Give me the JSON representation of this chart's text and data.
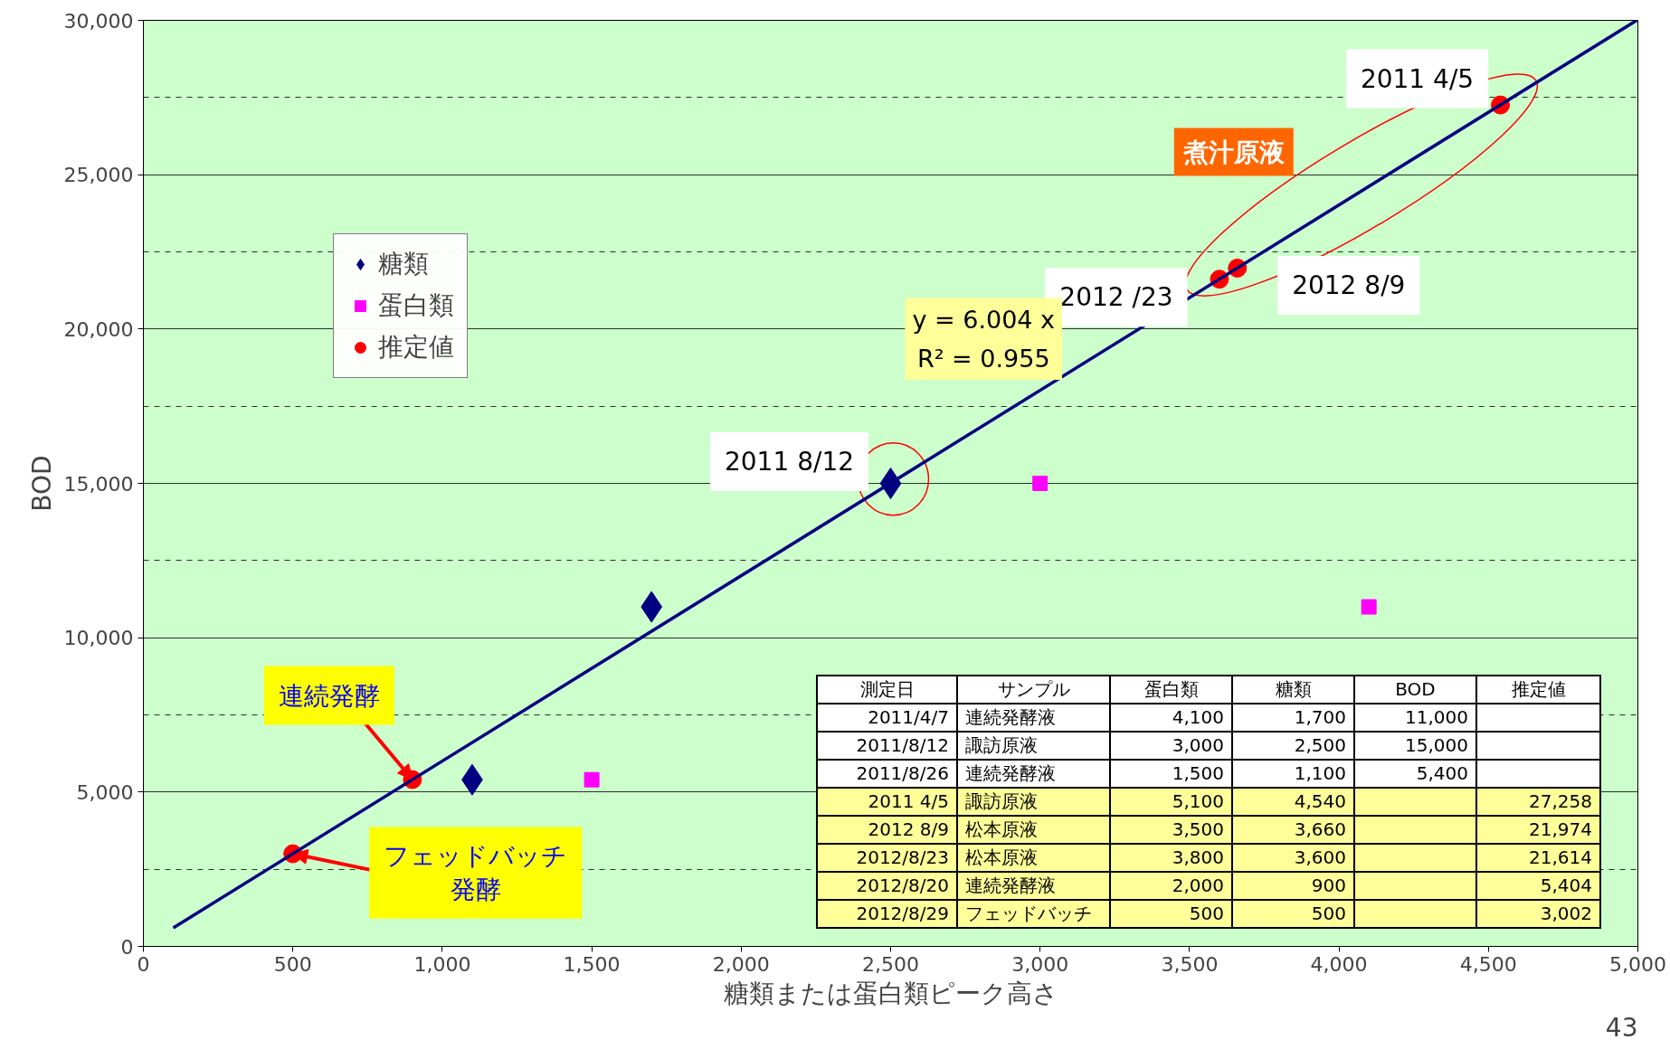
{
  "chart_data": {
    "type": "scatter",
    "xlabel": "糖類または蛋白類ピーク高さ",
    "ylabel": "BOD",
    "xlim": [
      0,
      5000
    ],
    "ylim": [
      0,
      30000
    ],
    "xticks": [
      0,
      500,
      {
        "value": 1000,
        "label": "1,000"
      },
      {
        "value": 1500,
        "label": "1,500"
      },
      {
        "value": 2000,
        "label": "2,000"
      },
      {
        "value": 2500,
        "label": "2,500"
      },
      {
        "value": 3000,
        "label": "3,000"
      },
      {
        "value": 3500,
        "label": "3,500"
      },
      {
        "value": 4000,
        "label": "4,000"
      },
      {
        "value": 4500,
        "label": "4,500"
      },
      {
        "value": 5000,
        "label": "5,000"
      }
    ],
    "yticks": [
      0,
      {
        "value": 5000,
        "label": "5,000"
      },
      {
        "value": 10000,
        "label": "10,000"
      },
      {
        "value": 15000,
        "label": "15,000"
      },
      {
        "value": 20000,
        "label": "20,000"
      },
      {
        "value": 25000,
        "label": "25,000"
      },
      {
        "value": 30000,
        "label": "30,000"
      }
    ],
    "grid": "y",
    "legend": "top left",
    "series": [
      {
        "name": "糖類",
        "color": "#000080",
        "marker": "diamond",
        "x": [
          1700,
          2500,
          1100
        ],
        "values": [
          11000,
          15000,
          5400
        ]
      },
      {
        "name": "蛋白類",
        "color": "#ff00ff",
        "marker": "square",
        "x": [
          4100,
          3000,
          1500
        ],
        "values": [
          11000,
          15000,
          5400
        ]
      },
      {
        "name": "推定値",
        "color": "#ff0000",
        "marker": "circle",
        "x": [
          4540,
          3660,
          3600,
          900,
          500
        ],
        "values": [
          27258,
          21974,
          21614,
          5404,
          3002
        ]
      },
      {
        "type": "line",
        "color": "#000080",
        "x": [
          100,
          4996
        ],
        "values": [
          600,
          30000
        ]
      }
    ],
    "annotations": [
      {
        "text": "2011 4/5",
        "x": 4540,
        "y": 27258
      },
      {
        "text": "2012 8/9",
        "x": 3660,
        "y": 21974
      },
      {
        "text": "2012 /23",
        "x": 3600,
        "y": 21614
      },
      {
        "text": "2011 8/12",
        "x": 2500,
        "y": 15000
      },
      {
        "text": "連続発酵",
        "x": 900,
        "y": 5404
      },
      {
        "text": "フェッドバッチ発酵",
        "x": 500,
        "y": 3002
      },
      "煮汁原液",
      "y = 6.004 x",
      "R² = 0.955",
      "43",
      "測定日",
      "サンプル",
      "蛋白類",
      "糖類",
      "BOD",
      "推定値",
      "2011/4/7",
      "連続発酵液",
      "4,100",
      "1,700",
      "11,000",
      "2011/8/12",
      "諏訪原液",
      "3,000",
      "2,500",
      "15,000",
      "2011/8/26",
      "連続発酵液",
      "1,500",
      "1,100",
      "5,400",
      "2011 4/5",
      "諏訪原液",
      "5,100",
      "4,540",
      "27,258",
      "2012 8/9",
      "松本原液",
      "3,500",
      "3,660",
      "21,974",
      "2012/8/23",
      "松本原液",
      "3,800",
      "3,600",
      "21,614",
      "2012/8/20",
      "連続発酵液",
      "2,000",
      "900",
      "5,404",
      "2012/8/29",
      "フェッドバッチ",
      "500",
      "500",
      "3,002"
    ]
  }
}
